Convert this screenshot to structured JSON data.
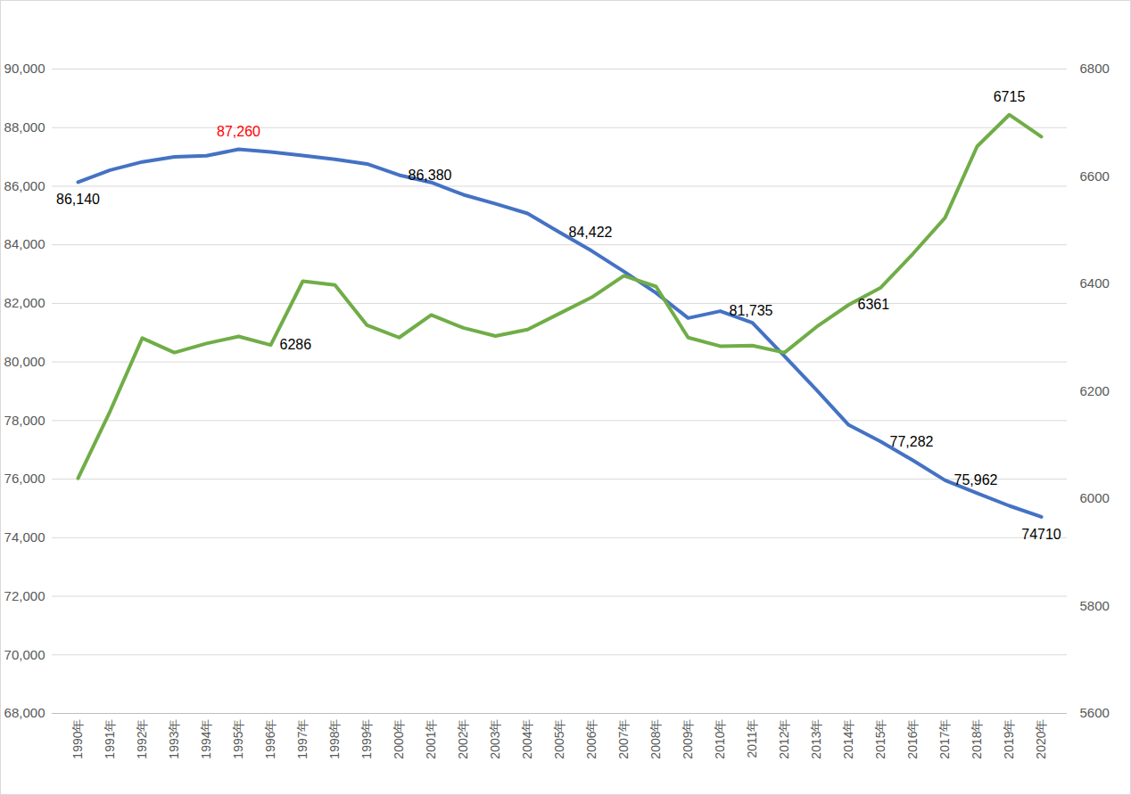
{
  "chart_data": {
    "type": "line",
    "categories": [
      "1990年",
      "1991年",
      "1992年",
      "1993年",
      "1994年",
      "1995年",
      "1996年",
      "1997年",
      "1998年",
      "1999年",
      "2000年",
      "2001年",
      "2002年",
      "2003年",
      "2004年",
      "2005年",
      "2006年",
      "2007年",
      "2008年",
      "2009年",
      "2010年",
      "2011年",
      "2012年",
      "2013年",
      "2014年",
      "2015年",
      "2016年",
      "2017年",
      "2018年",
      "2019年",
      "2020年"
    ],
    "series": [
      {
        "color": "#4472c4",
        "axis": "y",
        "values": [
          86140,
          86550,
          86830,
          87000,
          87040,
          87260,
          87170,
          87050,
          86920,
          86760,
          86380,
          86130,
          85710,
          85400,
          85070,
          84422,
          83790,
          83090,
          82360,
          81500,
          81735,
          81340,
          80200,
          79040,
          77850,
          77282,
          76640,
          75962,
          75520,
          75090,
          74710
        ],
        "value_labels": [
          "86,140",
          null,
          null,
          null,
          null,
          "87,260",
          null,
          null,
          null,
          null,
          "86,380",
          null,
          null,
          null,
          null,
          "84,422",
          null,
          null,
          null,
          null,
          "81,735",
          null,
          null,
          null,
          null,
          "77,282",
          null,
          "75,962",
          null,
          null,
          "74710"
        ]
      },
      {
        "color": "#70ad47",
        "axis": "y2",
        "values": [
          6038,
          6163,
          6299,
          6272,
          6289,
          6302,
          6286,
          6405,
          6398,
          6323,
          6300,
          6342,
          6318,
          6303,
          6315,
          6345,
          6375,
          6415,
          6395,
          6300,
          6284,
          6285,
          6272,
          6320,
          6361,
          6393,
          6456,
          6523,
          6656,
          6715,
          6674
        ],
        "value_labels": [
          null,
          null,
          null,
          null,
          null,
          null,
          "6286",
          null,
          null,
          null,
          null,
          null,
          null,
          null,
          null,
          null,
          null,
          null,
          null,
          null,
          null,
          null,
          null,
          null,
          "6361",
          null,
          null,
          null,
          null,
          "6715",
          null
        ]
      }
    ],
    "ylim": [
      68000,
      90000
    ],
    "yticks": [
      {
        "value": 68000,
        "label": "68,000"
      },
      {
        "value": 70000,
        "label": "70,000"
      },
      {
        "value": 72000,
        "label": "72,000"
      },
      {
        "value": 74000,
        "label": "74,000"
      },
      {
        "value": 76000,
        "label": "76,000"
      },
      {
        "value": 78000,
        "label": "78,000"
      },
      {
        "value": 80000,
        "label": "80,000"
      },
      {
        "value": 82000,
        "label": "82,000"
      },
      {
        "value": 84000,
        "label": "84,000"
      },
      {
        "value": 86000,
        "label": "86,000"
      },
      {
        "value": 88000,
        "label": "88,000"
      },
      {
        "value": 90000,
        "label": "90,000"
      }
    ],
    "y2lim": [
      5600,
      6800
    ],
    "y2ticks": [
      5600,
      5800,
      6000,
      6200,
      6400,
      6600,
      6800
    ],
    "grid": true,
    "data_labels": true
  }
}
